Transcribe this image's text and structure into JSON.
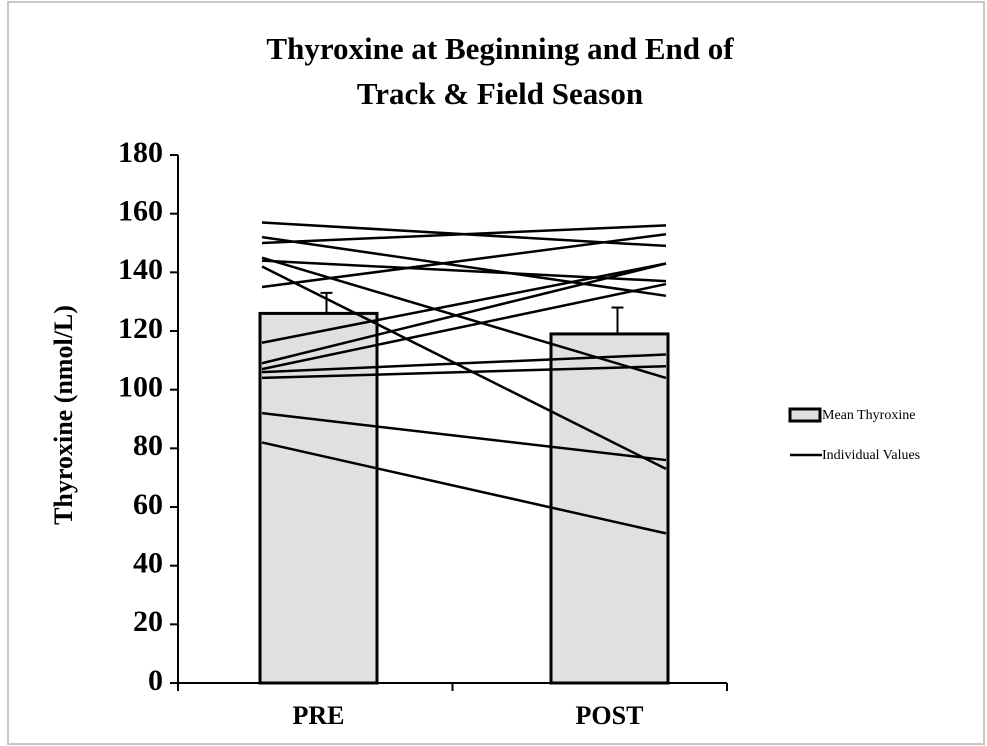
{
  "chart_data": {
    "type": "bar",
    "title": [
      "Thyroxine at Beginning and End of",
      "Track & Field Season"
    ],
    "y_label": "Thyroxine (nmol/L)",
    "categories": [
      "PRE",
      "POST"
    ],
    "ylim": [
      0,
      180
    ],
    "yticks": [
      0,
      20,
      40,
      60,
      80,
      100,
      120,
      140,
      160,
      180
    ],
    "series": [
      {
        "name": "Mean Thyroxine",
        "color": "#e0e0e0",
        "values": [
          126,
          119
        ],
        "errors": [
          7,
          9
        ]
      },
      {
        "name": "Individual Values",
        "color": "#000000",
        "lines": [
          [
            157,
            149
          ],
          [
            152,
            132
          ],
          [
            150,
            156
          ],
          [
            145,
            104
          ],
          [
            144,
            137
          ],
          [
            142,
            73
          ],
          [
            135,
            153
          ],
          [
            116,
            143
          ],
          [
            109,
            143
          ],
          [
            107,
            136
          ],
          [
            106,
            112
          ],
          [
            104,
            108
          ],
          [
            92,
            76
          ],
          [
            82,
            51
          ]
        ]
      }
    ]
  }
}
